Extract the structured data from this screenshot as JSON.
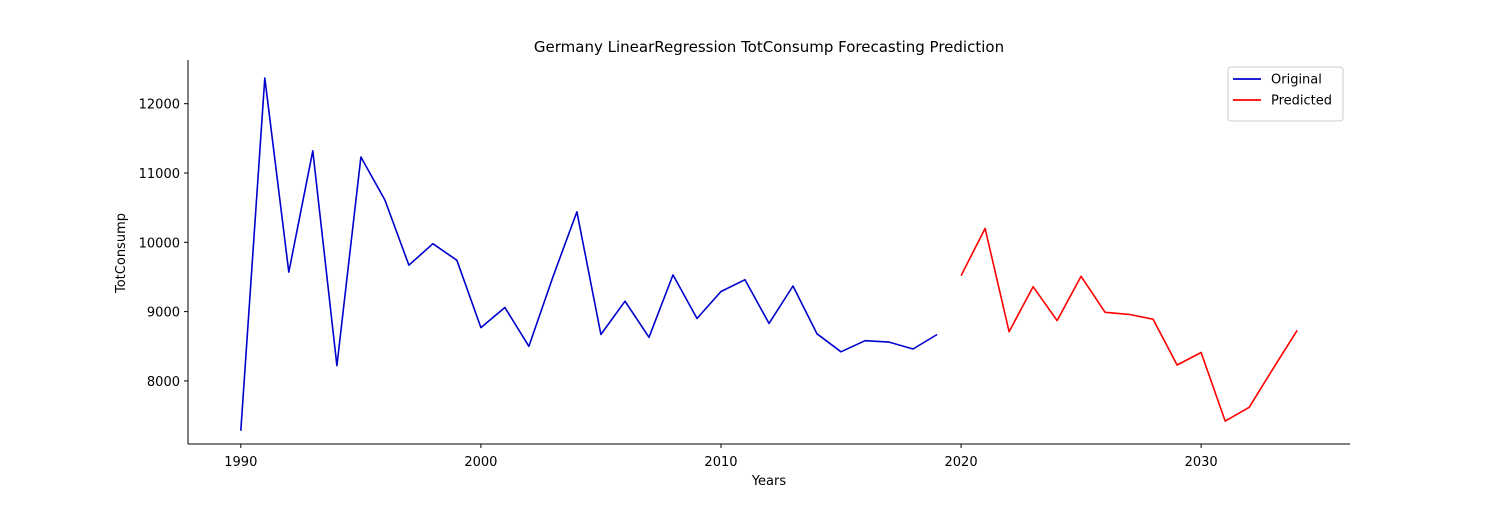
{
  "chart_data": {
    "type": "line",
    "title": "Germany LinearRegression TotConsump Forecasting Prediction",
    "xlabel": "Years",
    "ylabel": "TotConsump",
    "xlim": [
      1987.8,
      2036.2
    ],
    "ylim": [
      7090,
      12630
    ],
    "xticks": [
      1990,
      2000,
      2010,
      2020,
      2030
    ],
    "yticks": [
      8000,
      9000,
      10000,
      11000,
      12000
    ],
    "grid": false,
    "legend_position": "upper right",
    "series": [
      {
        "name": "Original",
        "color": "#0000cd",
        "x": [
          1990,
          1991,
          1992,
          1993,
          1994,
          1995,
          1996,
          1997,
          1998,
          1999,
          2000,
          2001,
          2002,
          2003,
          2004,
          2005,
          2006,
          2007,
          2008,
          2009,
          2010,
          2011,
          2012,
          2013,
          2014,
          2015,
          2016,
          2017,
          2018,
          2019
        ],
        "y": [
          7280,
          12370,
          9570,
          11320,
          8220,
          11230,
          10610,
          9670,
          9980,
          9740,
          8770,
          9060,
          8500,
          9500,
          10440,
          8670,
          9150,
          8630,
          9530,
          8900,
          9290,
          9460,
          8830,
          9370,
          8680,
          8420,
          8580,
          8560,
          8460,
          8670
        ]
      },
      {
        "name": "Predicted",
        "color": "#ff0000",
        "x": [
          2020,
          2021,
          2022,
          2023,
          2024,
          2025,
          2026,
          2027,
          2028,
          2029,
          2030,
          2031,
          2032,
          2033,
          2034
        ],
        "y": [
          9520,
          10200,
          8710,
          9360,
          8870,
          9510,
          8990,
          8960,
          8890,
          8230,
          8410,
          7420,
          7620,
          8180,
          8730
        ]
      }
    ]
  }
}
